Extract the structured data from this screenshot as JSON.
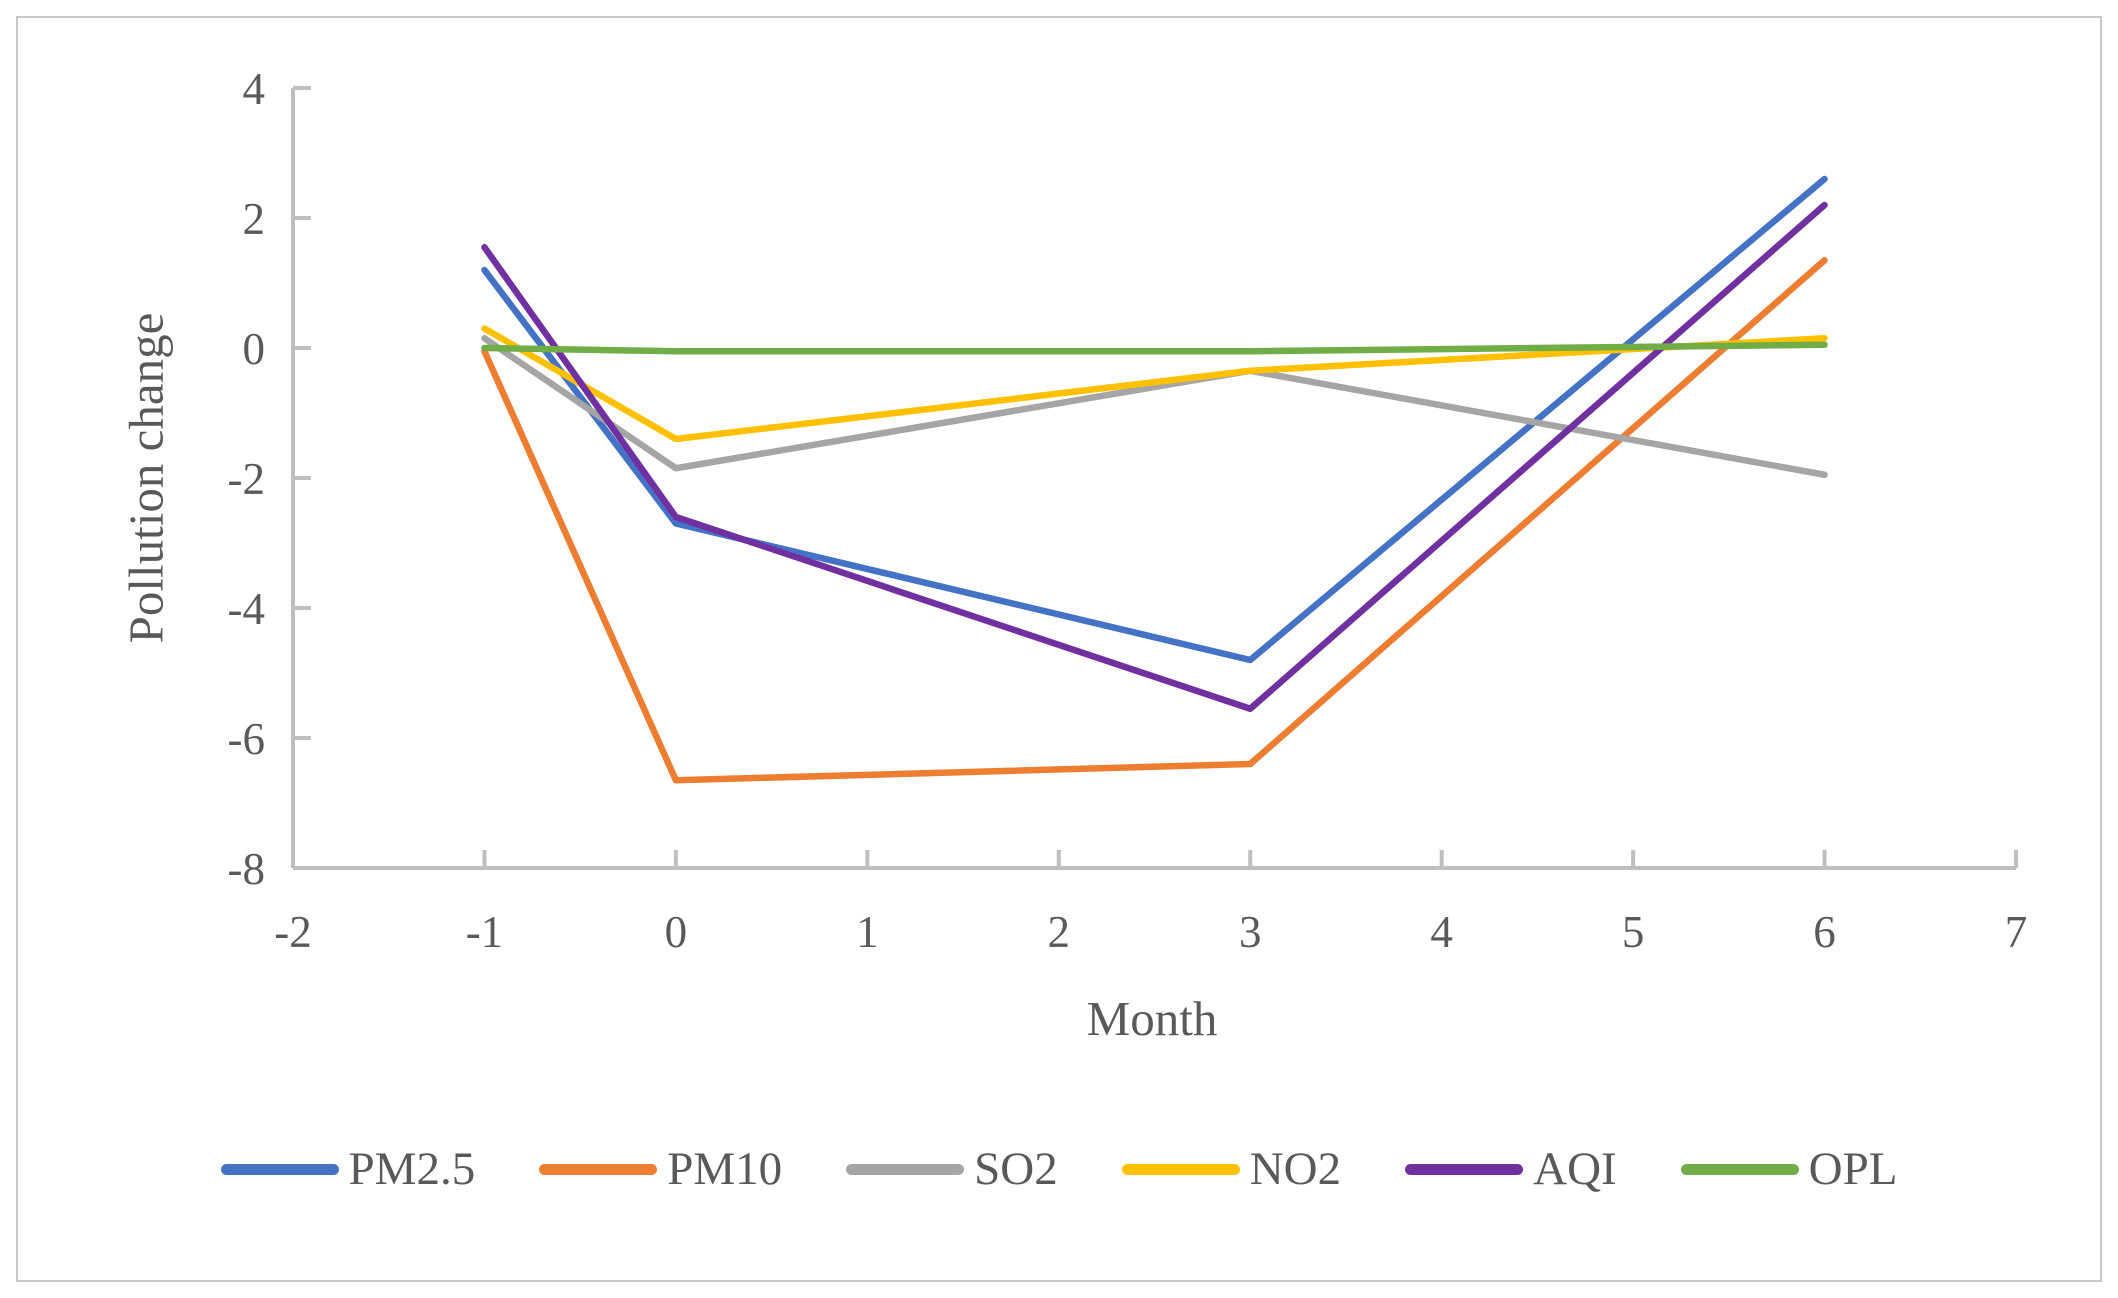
{
  "chart_data": {
    "type": "line",
    "title": "",
    "xlabel": "Month",
    "ylabel": "Pollution change",
    "x": [
      -1,
      0,
      3,
      6
    ],
    "series": [
      {
        "name": "PM2.5",
        "color": "#4472C4",
        "values": [
          1.2,
          -2.7,
          -4.8,
          2.6
        ]
      },
      {
        "name": "PM10",
        "color": "#ED7D31",
        "values": [
          -0.05,
          -6.65,
          -6.4,
          1.35
        ]
      },
      {
        "name": "SO2",
        "color": "#A5A5A5",
        "values": [
          0.15,
          -1.85,
          -0.35,
          -1.95
        ]
      },
      {
        "name": "NO2",
        "color": "#FFC000",
        "values": [
          0.3,
          -1.4,
          -0.35,
          0.15
        ]
      },
      {
        "name": "AQI",
        "color": "#7030A0",
        "values": [
          1.55,
          -2.6,
          -5.55,
          2.2
        ]
      },
      {
        "name": "OPL",
        "color": "#70AD47",
        "values": [
          0.0,
          -0.05,
          -0.05,
          0.05
        ]
      }
    ],
    "xlim": [
      -2,
      7
    ],
    "ylim": [
      -8,
      4
    ],
    "x_ticks": [
      -2,
      -1,
      0,
      1,
      2,
      3,
      4,
      5,
      6,
      7
    ],
    "y_ticks": [
      4,
      2,
      0,
      -2,
      -4,
      -6,
      -8
    ],
    "grid": false,
    "legend_position": "bottom",
    "axis_color": "#BFBFBF",
    "text_color": "#595959"
  }
}
